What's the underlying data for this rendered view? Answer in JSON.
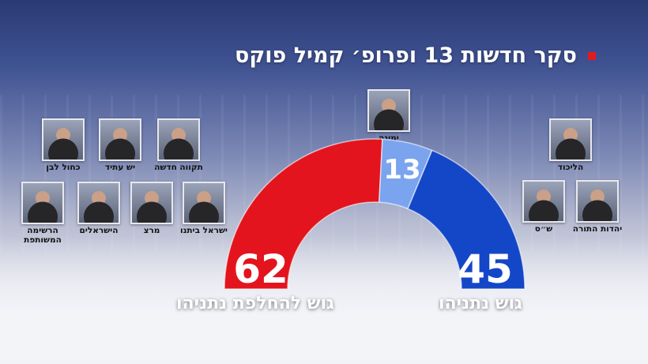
{
  "title": "סקר חדשות 13 ופרופ׳ קמיל פוקס",
  "colors": {
    "anti_bloc": "#e3141d",
    "pro_bloc": "#1447c7",
    "yamina": "#7aa4ee",
    "title_bullet": "#e01b22"
  },
  "chart_data": {
    "type": "half-donut",
    "title": "סקר חדשות 13 ופרופ׳ קמיל פוקס",
    "total": 120,
    "segments": [
      {
        "name": "גוש להחלפת נתניהו",
        "value": 62
      },
      {
        "name": "ימינה",
        "value": 13
      },
      {
        "name": "גוש נתניהו",
        "value": 45
      }
    ]
  },
  "anti_bloc_parties": [
    {
      "label": "כחול לבן"
    },
    {
      "label": "יש עתיד"
    },
    {
      "label": "תקווה חדשה"
    },
    {
      "label": "הרשימה המשותפת"
    },
    {
      "label": "הישראלים"
    },
    {
      "label": "מרצ"
    },
    {
      "label": "ישראל ביתנו"
    }
  ],
  "center_party": {
    "label": "ימינה"
  },
  "pro_bloc_parties": [
    {
      "label": "הליכוד"
    },
    {
      "label": "ש״ס"
    },
    {
      "label": "יהדות התורה"
    }
  ],
  "blocs": {
    "anti": {
      "label": "גוש להחלפת נתניהו",
      "value": "62"
    },
    "yamina": {
      "value": "13"
    },
    "pro": {
      "label": "גוש נתניהו",
      "value": "45"
    }
  }
}
